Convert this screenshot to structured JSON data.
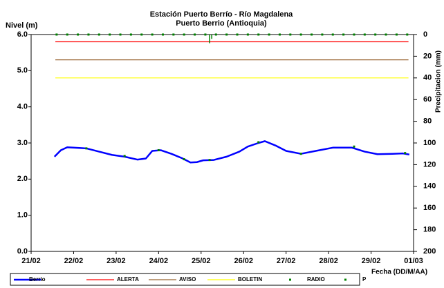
{
  "chart_data": {
    "type": "line",
    "title": "Estación Puerto Berrío - Río Magdalena",
    "subtitle": "Puerto Berrio (Antioquia)",
    "y_label": "Nivel (m)",
    "y2_label": "Precipitacion (mm)",
    "x_label": "Fecha (DD/M/AA)",
    "xlim": [
      0,
      9
    ],
    "xticks": [
      {
        "value": 0,
        "label": "21/02"
      },
      {
        "value": 1,
        "label": "22/02"
      },
      {
        "value": 2,
        "label": "23/02"
      },
      {
        "value": 3,
        "label": "24/02"
      },
      {
        "value": 4,
        "label": "25/02"
      },
      {
        "value": 5,
        "label": "26/02"
      },
      {
        "value": 6,
        "label": "27/02"
      },
      {
        "value": 7,
        "label": "28/02"
      },
      {
        "value": 8,
        "label": "29/02"
      },
      {
        "value": 9,
        "label": "01/03"
      }
    ],
    "ylim": [
      0,
      6
    ],
    "yticks": [
      {
        "value": 0,
        "label": "0.0"
      },
      {
        "value": 1,
        "label": "1.0"
      },
      {
        "value": 2,
        "label": "2.0"
      },
      {
        "value": 3,
        "label": "3.0"
      },
      {
        "value": 4,
        "label": "4.0"
      },
      {
        "value": 5,
        "label": "5.0"
      },
      {
        "value": 6,
        "label": "6.0"
      }
    ],
    "y2lim": [
      0,
      200
    ],
    "y2_inverted": true,
    "y2ticks": [
      0,
      20,
      40,
      60,
      80,
      100,
      120,
      140,
      160,
      180,
      200
    ],
    "grid": false,
    "legend": "bottom",
    "series": [
      {
        "name": "Berrio",
        "color": "#0000ff",
        "kind": "line",
        "x": [
          0.55,
          0.7,
          0.85,
          1.0,
          1.3,
          1.6,
          1.9,
          2.2,
          2.5,
          2.7,
          2.85,
          3.05,
          3.3,
          3.55,
          3.75,
          3.9,
          4.05,
          4.3,
          4.6,
          4.9,
          5.1,
          5.35,
          5.5,
          5.75,
          6.0,
          6.35,
          6.7,
          7.1,
          7.55,
          7.85,
          8.15,
          8.5,
          8.75,
          8.9
        ],
        "values": [
          2.62,
          2.8,
          2.88,
          2.87,
          2.85,
          2.76,
          2.67,
          2.62,
          2.54,
          2.57,
          2.78,
          2.8,
          2.7,
          2.58,
          2.46,
          2.47,
          2.52,
          2.53,
          2.62,
          2.76,
          2.9,
          3.0,
          3.05,
          2.93,
          2.78,
          2.7,
          2.78,
          2.87,
          2.87,
          2.76,
          2.69,
          2.7,
          2.71,
          2.68
        ]
      },
      {
        "name": "ALERTA",
        "color": "#ff0000",
        "kind": "line",
        "x": [
          0.57,
          8.88
        ],
        "values": [
          5.8,
          5.8
        ]
      },
      {
        "name": "AVISO",
        "color": "#996633",
        "kind": "line",
        "x": [
          0.57,
          8.88
        ],
        "values": [
          5.3,
          5.3
        ]
      },
      {
        "name": "BOLETIN",
        "color": "#ffff00",
        "kind": "line",
        "x": [
          0.57,
          8.88
        ],
        "values": [
          4.8,
          4.8
        ]
      },
      {
        "name": "RADIO",
        "color": "#008000",
        "kind": "scatter",
        "x": [
          1.3,
          2.2,
          3.0,
          3.6,
          4.2,
          5.35,
          6.35,
          7.6,
          8.8
        ],
        "values": [
          2.85,
          2.64,
          2.8,
          2.55,
          2.53,
          3.02,
          2.7,
          2.9,
          2.72
        ]
      },
      {
        "name": "P",
        "color": "#008000",
        "kind": "scatter",
        "axis": "y2",
        "x": [
          0.6,
          0.85,
          1.1,
          1.35,
          1.6,
          1.85,
          2.1,
          2.35,
          2.6,
          2.85,
          3.1,
          3.35,
          3.6,
          3.85,
          4.1,
          4.2,
          4.25,
          4.35,
          4.6,
          4.85,
          5.1,
          5.35,
          5.6,
          5.85,
          6.1,
          6.35,
          6.6,
          6.85,
          7.1,
          7.35,
          7.6,
          7.85,
          8.1,
          8.35,
          8.6,
          8.85
        ],
        "values": [
          0,
          0,
          0,
          0,
          0,
          0,
          0,
          0,
          0,
          0,
          0,
          0,
          0,
          0,
          0,
          8,
          4,
          0,
          0,
          0,
          0,
          0,
          0,
          0,
          0,
          0,
          0,
          0,
          0,
          0,
          0,
          0,
          0,
          0,
          0,
          0
        ]
      }
    ]
  }
}
